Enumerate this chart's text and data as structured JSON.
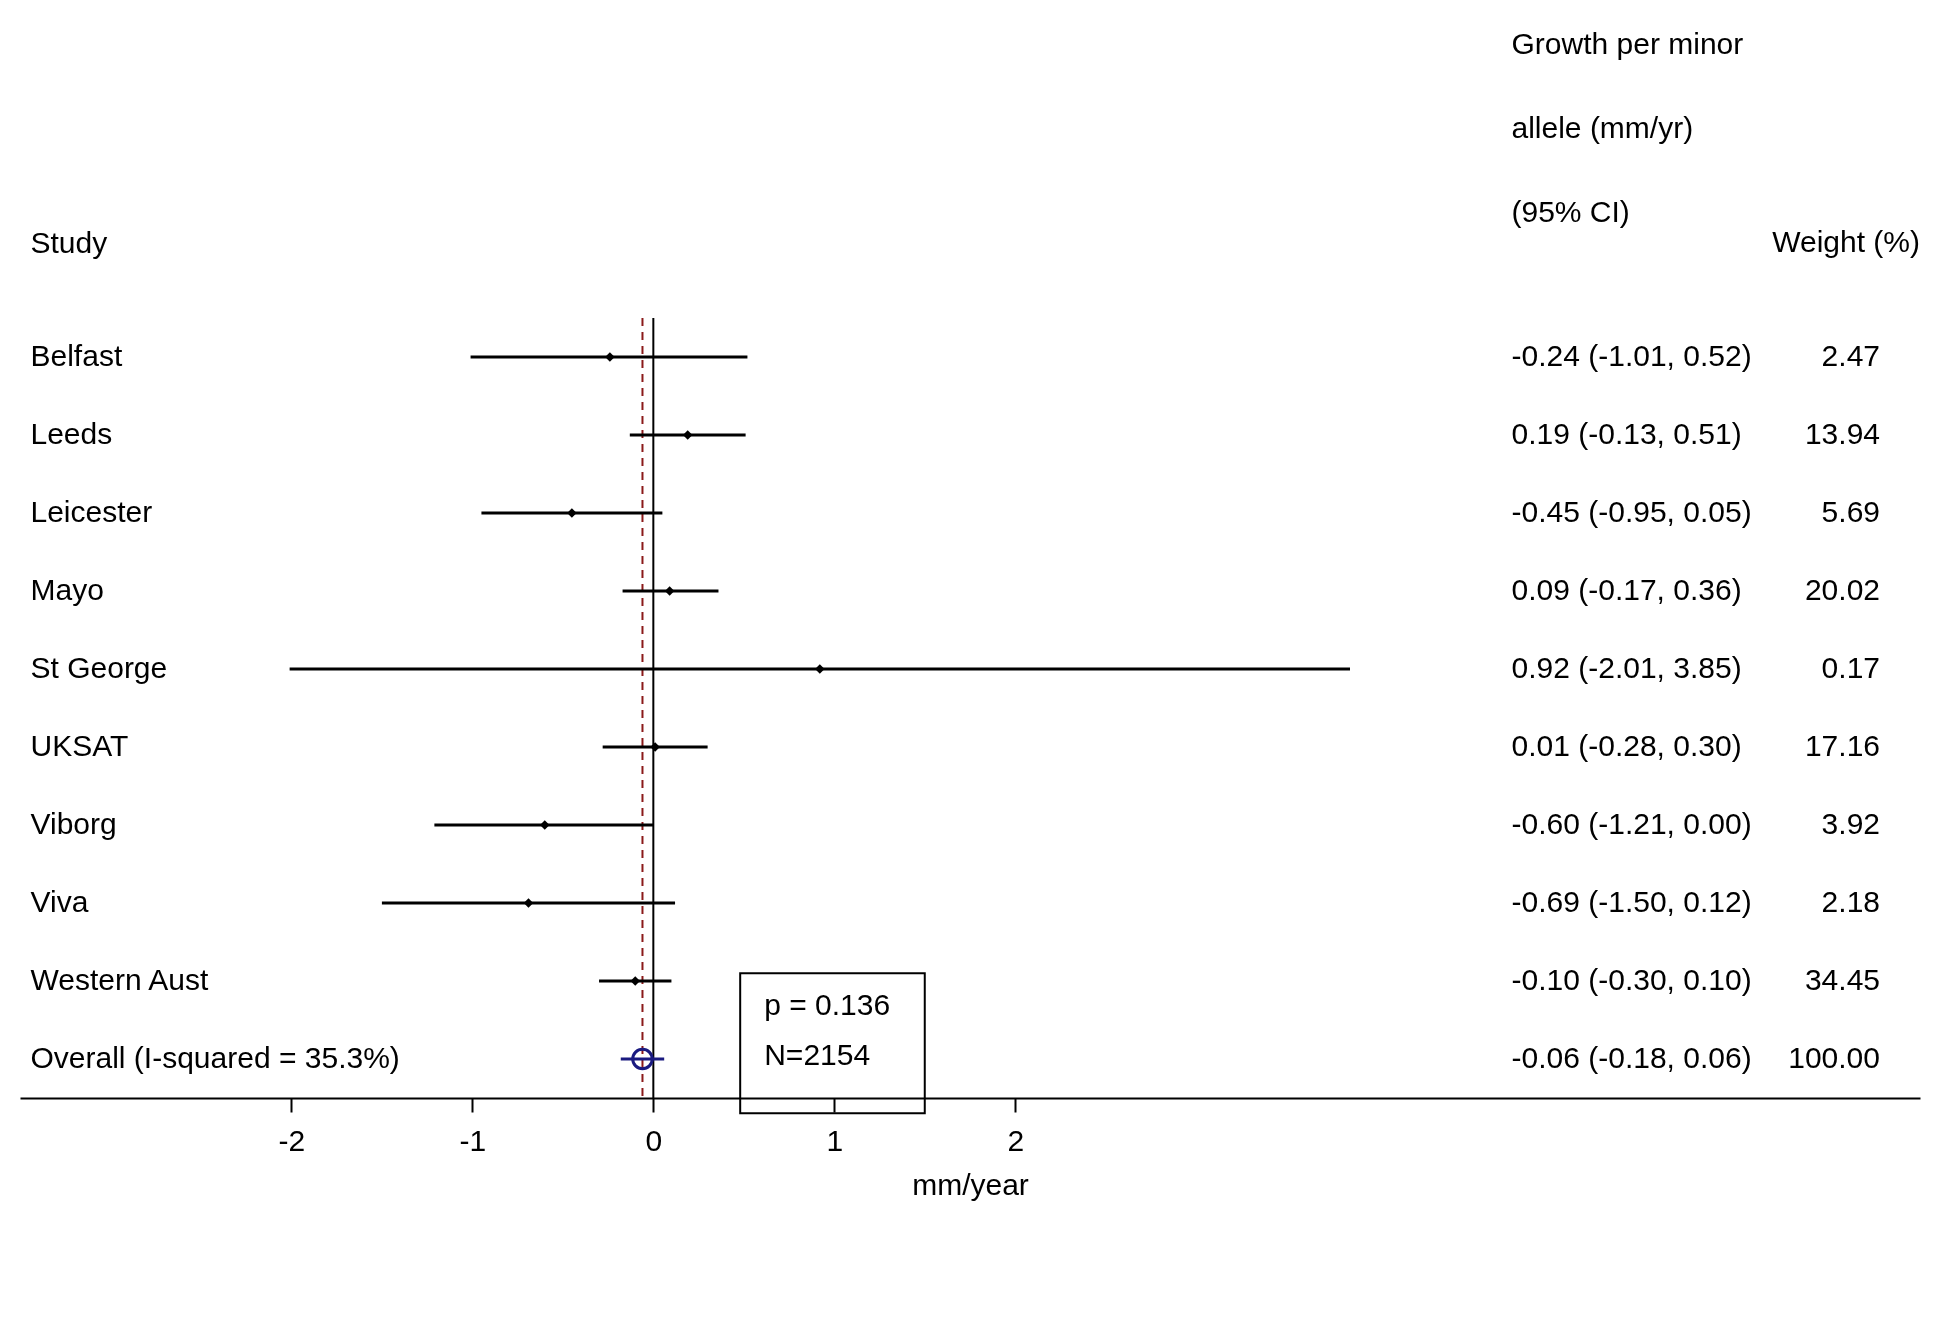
{
  "chart_data": {
    "type": "scatter",
    "orientation": "horizontal",
    "ylabel": "Study",
    "xlabel": "mm/year",
    "categories": [
      "Belfast",
      "Leeds",
      "Leicester",
      "Mayo",
      "St George",
      "UKSAT",
      "Viborg",
      "Viva",
      "Western Aust",
      "Overall (I-squared = 35.3%)"
    ],
    "xlim": [
      -3.5,
      7
    ],
    "xticks": [
      -2,
      -1,
      0,
      1,
      2
    ],
    "grid": false,
    "marker": "diamond",
    "series": [
      {
        "color": "#000000",
        "values": [
          -0.24,
          0.19,
          -0.45,
          0.09,
          0.92,
          0.01,
          -0.6,
          -0.69,
          -0.1,
          null
        ],
        "errors": [
          [
            -1.01,
            0.52
          ],
          [
            -0.13,
            0.51
          ],
          [
            -0.95,
            0.05
          ],
          [
            -0.17,
            0.36
          ],
          [
            -2.01,
            3.85
          ],
          [
            -0.28,
            0.3
          ],
          [
            -1.21,
            0.0
          ],
          [
            -1.5,
            0.12
          ],
          [
            -0.3,
            0.1
          ],
          null
        ]
      },
      {
        "color": "#1a1a80",
        "marker": "circle",
        "values": [
          null,
          null,
          null,
          null,
          null,
          null,
          null,
          null,
          null,
          -0.06
        ],
        "errors": [
          null,
          null,
          null,
          null,
          null,
          null,
          null,
          null,
          null,
          [
            -0.18,
            0.06
          ]
        ]
      }
    ],
    "ref_lines": [
      {
        "axis": "x",
        "value": 0,
        "color": "#000000",
        "line_style": "solid"
      },
      {
        "axis": "x",
        "value": -0.06,
        "color": "#8b1a1a",
        "line_style": "dashed"
      }
    ],
    "annotations": [
      "Growth per minor allele (mm/yr) (95% CI)",
      "Weight (%)",
      "-0.24 (-1.01, 0.52)",
      "0.19 (-0.13, 0.51)",
      "-0.45 (-0.95, 0.05)",
      "0.09 (-0.17, 0.36)",
      "0.92 (-2.01, 3.85)",
      "0.01 (-0.28, 0.30)",
      "-0.60 (-1.21, 0.00)",
      "-0.69 (-1.50, 0.12)",
      "-0.10 (-0.30, 0.10)",
      "-0.06 (-0.18, 0.06)",
      "2.47",
      "13.94",
      "5.69",
      "20.02",
      "0.17",
      "17.16",
      "3.92",
      "2.18",
      "34.45",
      "100.00",
      "p = 0.136",
      "N=2154"
    ]
  }
}
